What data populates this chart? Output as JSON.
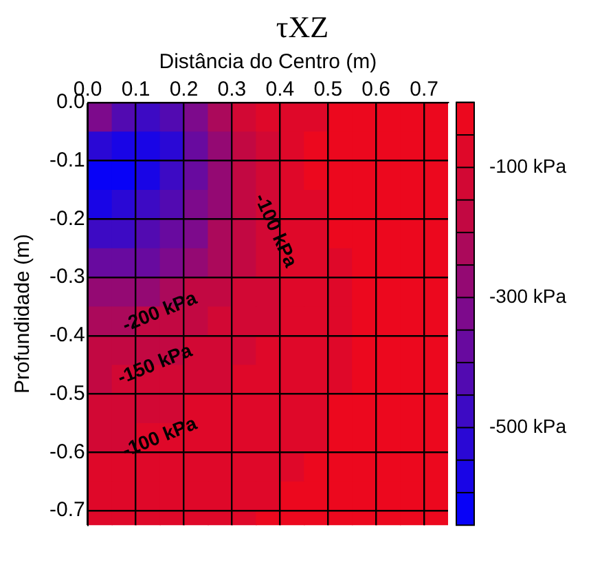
{
  "chart_data": {
    "type": "heatmap",
    "title": "τXZ",
    "xlabel": "Distância do Centro (m)",
    "ylabel": "Profundidade (m)",
    "x": [
      0.025,
      0.075,
      0.125,
      0.175,
      0.225,
      0.275,
      0.325,
      0.375,
      0.425,
      0.475,
      0.525,
      0.575,
      0.625,
      0.675,
      0.725
    ],
    "y": [
      -0.025,
      -0.075,
      -0.125,
      -0.175,
      -0.225,
      -0.275,
      -0.325,
      -0.375,
      -0.425,
      -0.475,
      -0.525,
      -0.575,
      -0.625,
      -0.675,
      -0.725
    ],
    "cells": [
      [
        -350,
        -450,
        -500,
        -450,
        -350,
        -250,
        -150,
        -90,
        -75,
        -60,
        -40,
        -30,
        -25,
        -25,
        -25
      ],
      [
        -550,
        -600,
        -600,
        -550,
        -400,
        -300,
        -200,
        -110,
        -80,
        -45,
        -35,
        -30,
        -25,
        -25,
        -25
      ],
      [
        -620,
        -620,
        -580,
        -500,
        -380,
        -280,
        -180,
        -120,
        -80,
        -45,
        -40,
        -30,
        -25,
        -25,
        -25
      ],
      [
        -570,
        -550,
        -500,
        -430,
        -350,
        -270,
        -180,
        -120,
        -80,
        -60,
        -45,
        -35,
        -25,
        -25,
        -25
      ],
      [
        -480,
        -460,
        -420,
        -380,
        -320,
        -250,
        -170,
        -120,
        -85,
        -65,
        -50,
        -40,
        -30,
        -25,
        -25
      ],
      [
        -400,
        -380,
        -360,
        -320,
        -280,
        -220,
        -160,
        -120,
        -90,
        -70,
        -55,
        -45,
        -35,
        -30,
        -25
      ],
      [
        -300,
        -280,
        -260,
        -230,
        -200,
        -180,
        -150,
        -115,
        -90,
        -70,
        -55,
        -45,
        -35,
        -30,
        -25
      ],
      [
        -230,
        -220,
        -200,
        -180,
        -170,
        -150,
        -130,
        -105,
        -85,
        -70,
        -55,
        -45,
        -40,
        -30,
        -25
      ],
      [
        -190,
        -180,
        -170,
        -160,
        -145,
        -130,
        -115,
        -95,
        -80,
        -65,
        -55,
        -45,
        -40,
        -30,
        -25
      ],
      [
        -160,
        -150,
        -140,
        -130,
        -120,
        -110,
        -100,
        -85,
        -75,
        -65,
        -55,
        -45,
        -35,
        -30,
        -25
      ],
      [
        -130,
        -125,
        -120,
        -110,
        -100,
        -95,
        -85,
        -75,
        -70,
        -60,
        -50,
        -40,
        -35,
        -30,
        -25
      ],
      [
        -110,
        -105,
        -100,
        -95,
        -85,
        -80,
        -75,
        -70,
        -65,
        -55,
        -45,
        -40,
        -30,
        -25,
        -25
      ],
      [
        -95,
        -90,
        -85,
        -80,
        -75,
        -70,
        -65,
        -60,
        -55,
        -50,
        -40,
        -35,
        -30,
        -25,
        -25
      ],
      [
        -85,
        -80,
        -75,
        -70,
        -65,
        -60,
        -60,
        -55,
        -50,
        -45,
        -35,
        -30,
        -25,
        -25,
        -25
      ],
      [
        -80,
        -75,
        -70,
        -65,
        -60,
        -55,
        -55,
        -50,
        -45,
        -40,
        -30,
        -25,
        -25,
        -25,
        -25
      ]
    ],
    "xlim": [
      0,
      0.75
    ],
    "xticks": [
      {
        "value": 0,
        "label": "0.0"
      },
      0.1,
      0.2,
      0.3,
      0.4,
      0.5,
      0.6,
      0.7
    ],
    "ylim": [
      -0.725,
      0
    ],
    "yticks": [
      {
        "value": 0,
        "label": "0.0"
      },
      -0.1,
      -0.2,
      -0.3,
      -0.4,
      -0.5,
      -0.6,
      -0.7
    ],
    "clim": [
      -650,
      0
    ],
    "cticks": [
      {
        "value": -100,
        "label": "-100 kPa"
      },
      {
        "value": -300,
        "label": "-300 kPa"
      },
      {
        "value": -500,
        "label": "-500 kPa"
      }
    ],
    "grid": true,
    "annotations": [
      "-200 kPa",
      "-150 kPa",
      "-100 kPa",
      "-100 kPa"
    ]
  }
}
